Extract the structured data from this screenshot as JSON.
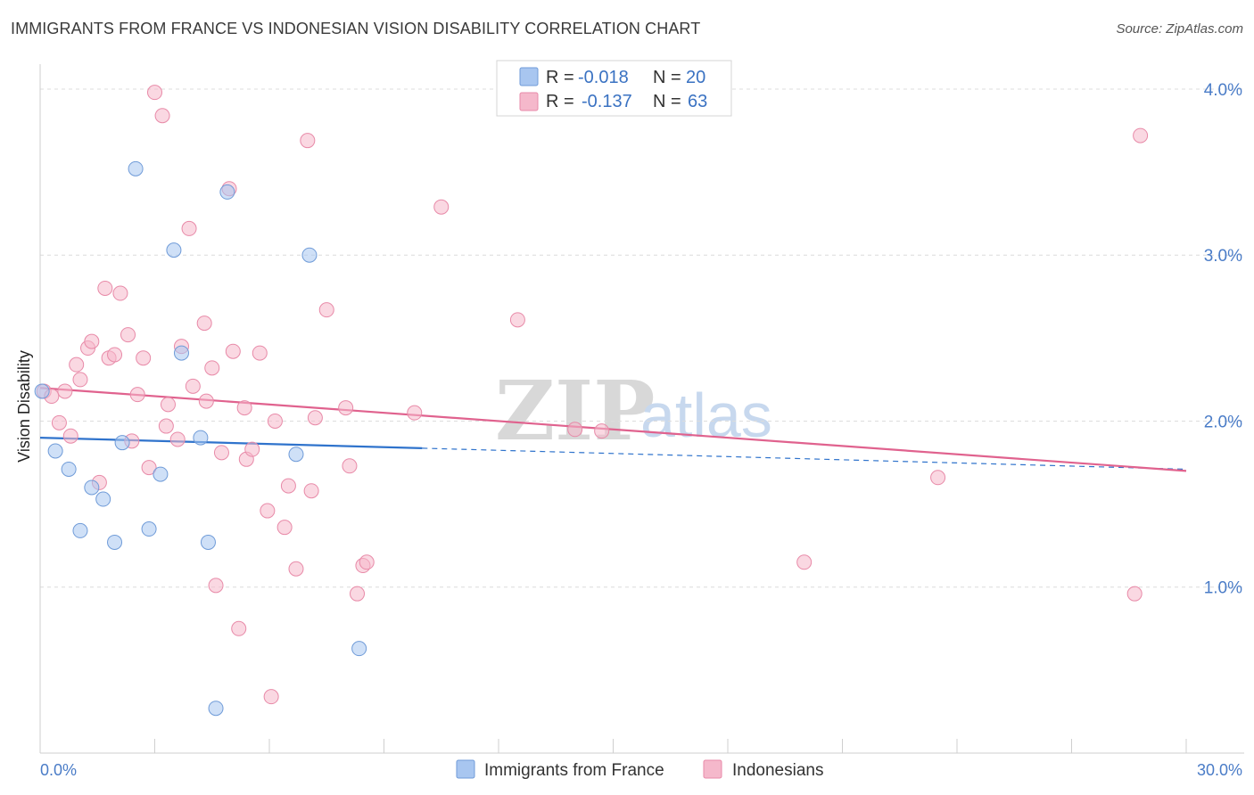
{
  "title": "IMMIGRANTS FROM FRANCE VS INDONESIAN VISION DISABILITY CORRELATION CHART",
  "source": "Source: ZipAtlas.com",
  "watermark": {
    "part1": "ZIP",
    "part2": "atlas"
  },
  "legend": {
    "rows": [
      {
        "r_label": "R =",
        "r_value": "-0.018",
        "n_label": "N =",
        "n_value": "20",
        "color": "#a8c6f0"
      },
      {
        "r_label": "R =",
        "r_value": "-0.137",
        "n_label": "N =",
        "n_value": "63",
        "color": "#f5b8cb"
      }
    ]
  },
  "chart_data": {
    "type": "scatter",
    "ylabel": "Vision Disability",
    "xlabel": "",
    "xlim": [
      0,
      30
    ],
    "ylim": [
      0,
      4.15
    ],
    "x_tick_labels": [
      "0.0%",
      "30.0%"
    ],
    "y_ticks": [
      1,
      2,
      3,
      4
    ],
    "y_tick_labels": [
      "1.0%",
      "2.0%",
      "3.0%",
      "4.0%"
    ],
    "grid": "horizontal dashed",
    "legend_position": "top-center",
    "series": [
      {
        "name": "Immigrants from France",
        "color": "#a8c6f0",
        "stroke": "#6f9bd8",
        "trend_color": "#2f73cc",
        "trend": {
          "x0": 0,
          "y0": 1.9,
          "x1": 30,
          "y1": 1.71,
          "solid_until": 10
        },
        "points": [
          [
            0.05,
            2.18
          ],
          [
            0.4,
            1.82
          ],
          [
            0.75,
            1.71
          ],
          [
            1.05,
            1.34
          ],
          [
            1.35,
            1.6
          ],
          [
            1.65,
            1.53
          ],
          [
            1.95,
            1.27
          ],
          [
            2.15,
            1.87
          ],
          [
            2.5,
            3.52
          ],
          [
            2.85,
            1.35
          ],
          [
            3.15,
            1.68
          ],
          [
            3.5,
            3.03
          ],
          [
            3.7,
            2.41
          ],
          [
            4.2,
            1.9
          ],
          [
            4.4,
            1.27
          ],
          [
            4.6,
            0.27
          ],
          [
            4.9,
            3.38
          ],
          [
            6.7,
            1.8
          ],
          [
            7.05,
            3.0
          ],
          [
            8.35,
            0.63
          ]
        ]
      },
      {
        "name": "Indonesians",
        "color": "#f5b8cb",
        "stroke": "#e88aa8",
        "trend_color": "#e0628e",
        "trend": {
          "x0": 0,
          "y0": 2.2,
          "x1": 30,
          "y1": 1.7
        },
        "points": [
          [
            0.1,
            2.18
          ],
          [
            0.3,
            2.15
          ],
          [
            0.5,
            1.99
          ],
          [
            0.65,
            2.18
          ],
          [
            0.8,
            1.91
          ],
          [
            0.95,
            2.34
          ],
          [
            1.05,
            2.25
          ],
          [
            1.25,
            2.44
          ],
          [
            1.35,
            2.48
          ],
          [
            1.55,
            1.63
          ],
          [
            1.7,
            2.8
          ],
          [
            1.8,
            2.38
          ],
          [
            1.95,
            2.4
          ],
          [
            2.1,
            2.77
          ],
          [
            2.3,
            2.52
          ],
          [
            2.4,
            1.88
          ],
          [
            2.55,
            2.16
          ],
          [
            2.7,
            2.38
          ],
          [
            2.85,
            1.72
          ],
          [
            3.0,
            3.98
          ],
          [
            3.2,
            3.84
          ],
          [
            3.3,
            1.97
          ],
          [
            3.35,
            2.1
          ],
          [
            3.6,
            1.89
          ],
          [
            3.7,
            2.45
          ],
          [
            3.9,
            3.16
          ],
          [
            4.0,
            2.21
          ],
          [
            4.3,
            2.59
          ],
          [
            4.35,
            2.12
          ],
          [
            4.5,
            2.32
          ],
          [
            4.6,
            1.01
          ],
          [
            4.75,
            1.81
          ],
          [
            4.95,
            3.4
          ],
          [
            5.05,
            2.42
          ],
          [
            5.2,
            0.75
          ],
          [
            5.35,
            2.08
          ],
          [
            5.4,
            1.77
          ],
          [
            5.55,
            1.83
          ],
          [
            5.75,
            2.41
          ],
          [
            5.95,
            1.46
          ],
          [
            6.05,
            0.34
          ],
          [
            6.15,
            2.0
          ],
          [
            6.4,
            1.36
          ],
          [
            6.5,
            1.61
          ],
          [
            6.7,
            1.11
          ],
          [
            7.0,
            3.69
          ],
          [
            7.1,
            1.58
          ],
          [
            7.2,
            2.02
          ],
          [
            7.5,
            2.67
          ],
          [
            8.0,
            2.08
          ],
          [
            8.1,
            1.73
          ],
          [
            8.3,
            0.96
          ],
          [
            8.45,
            1.13
          ],
          [
            8.55,
            1.15
          ],
          [
            9.8,
            2.05
          ],
          [
            10.5,
            3.29
          ],
          [
            12.5,
            2.61
          ],
          [
            14.0,
            1.95
          ],
          [
            14.7,
            1.94
          ],
          [
            20.0,
            1.15
          ],
          [
            23.5,
            1.66
          ],
          [
            28.65,
            0.96
          ],
          [
            28.8,
            3.72
          ]
        ]
      }
    ]
  }
}
